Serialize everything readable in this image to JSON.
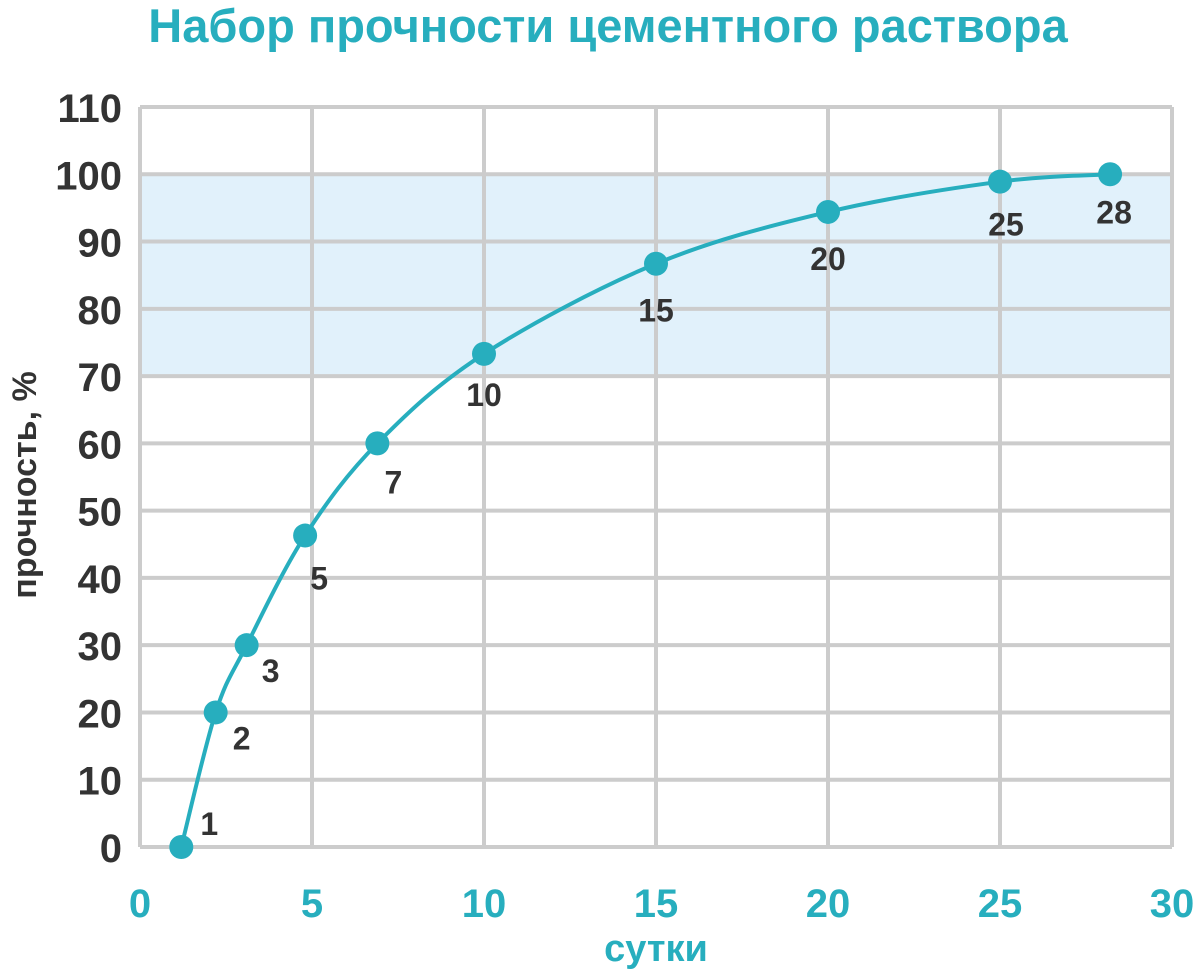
{
  "chart_data": {
    "type": "line",
    "title": "Набор прочности цементного раствора",
    "xlabel": "сутки",
    "ylabel": "прочность, %",
    "xlim": [
      0,
      30
    ],
    "ylim": [
      0,
      110
    ],
    "x_ticks": [
      0,
      5,
      10,
      15,
      20,
      25,
      30
    ],
    "y_ticks": [
      0,
      10,
      20,
      30,
      40,
      50,
      60,
      70,
      80,
      90,
      100,
      110
    ],
    "grid": true,
    "highlight_band": {
      "y_from": 70,
      "y_to": 100
    },
    "series": [
      {
        "points": [
          {
            "x": 1.2,
            "y": 0,
            "label": "1"
          },
          {
            "x": 2.2,
            "y": 20,
            "label": "2"
          },
          {
            "x": 3.1,
            "y": 30,
            "label": "3"
          },
          {
            "x": 4.8,
            "y": 46.3,
            "label": "5"
          },
          {
            "x": 6.9,
            "y": 60,
            "label": "7"
          },
          {
            "x": 10,
            "y": 73.3,
            "label": "10"
          },
          {
            "x": 15,
            "y": 86.7,
            "label": "15"
          },
          {
            "x": 20,
            "y": 94.4,
            "label": "20"
          },
          {
            "x": 25,
            "y": 98.9,
            "label": "25"
          },
          {
            "x": 28.2,
            "y": 100,
            "label": "28"
          }
        ]
      }
    ]
  },
  "colors": {
    "accent": "#27AEBE",
    "axis_text": "#333333",
    "grid": "#CCCCCC",
    "band": "#E1F1FB"
  }
}
